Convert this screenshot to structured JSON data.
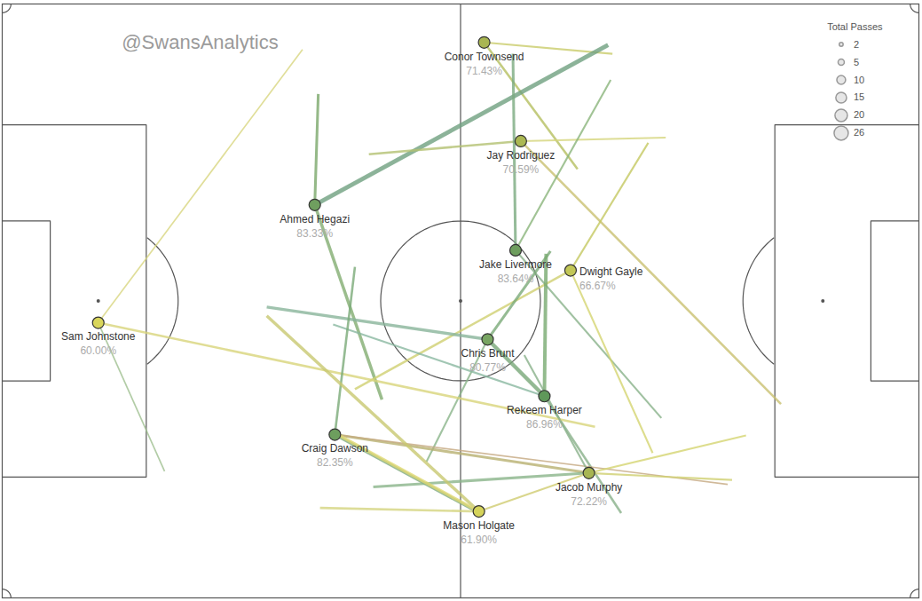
{
  "chart_data": {
    "type": "network",
    "title": "@SwansAnalytics",
    "xlim": [
      0,
      105
    ],
    "ylim": [
      0,
      68
    ],
    "tick_labels": false,
    "legend": "top-right",
    "legend_title": "Total Passes",
    "legend_sizes": [
      2,
      5,
      10,
      15,
      20,
      26
    ],
    "nodes": [
      {
        "name": "Conor Townsend",
        "x": 55.2,
        "y": 4.4,
        "completion": 71.43,
        "completion_label": "71.43%",
        "color": "#a9b651"
      },
      {
        "name": "Jay Rodriguez",
        "x": 59.4,
        "y": 15.7,
        "completion": 70.59,
        "completion_label": "70.59%",
        "color": "#abb852"
      },
      {
        "name": "Ahmed Hegazi",
        "x": 35.8,
        "y": 23.0,
        "completion": 83.33,
        "completion_label": "83.33%",
        "color": "#6f9f5f"
      },
      {
        "name": "Jake Livermore",
        "x": 58.8,
        "y": 28.2,
        "completion": 83.64,
        "completion_label": "83.64%",
        "color": "#6e9e5e"
      },
      {
        "name": "Dwight Gayle",
        "x": 65.1,
        "y": 30.5,
        "completion": 66.67,
        "completion_label": "66.67%",
        "color": "#c2c756"
      },
      {
        "name": "Chris Brunt",
        "x": 55.6,
        "y": 38.4,
        "completion": 80.77,
        "completion_label": "80.77%",
        "color": "#78a562"
      },
      {
        "name": "Rekeem Harper",
        "x": 62.1,
        "y": 44.9,
        "completion": 86.96,
        "completion_label": "86.96%",
        "color": "#5f985a"
      },
      {
        "name": "Sam Johnstone",
        "x": 11.0,
        "y": 36.5,
        "completion": 60.0,
        "completion_label": "60.00%",
        "color": "#d9d65b"
      },
      {
        "name": "Craig Dawson",
        "x": 38.1,
        "y": 49.3,
        "completion": 82.35,
        "completion_label": "82.35%",
        "color": "#6d9e5e"
      },
      {
        "name": "Jacob Murphy",
        "x": 67.2,
        "y": 53.7,
        "completion": 72.22,
        "completion_label": "72.22%",
        "color": "#a7b552"
      },
      {
        "name": "Mason Holgate",
        "x": 54.6,
        "y": 58.1,
        "completion": 61.9,
        "completion_label": "61.90%",
        "color": "#d5d35a"
      }
    ],
    "edges": [
      {
        "from": "Conor Townsend",
        "to_x": 69.9,
        "to_y": 5.7,
        "passes": 3,
        "color": "#c9cc6a"
      },
      {
        "from": "Conor Townsend",
        "to_x": 65.9,
        "to_y": 18.9,
        "passes": 4,
        "color": "#b5bf60"
      },
      {
        "from": "Ahmed Hegazi",
        "to_x": 69.4,
        "to_y": 4.7,
        "passes": 9,
        "color": "#6fa080"
      },
      {
        "from": "Ahmed Hegazi",
        "to_x": 36.2,
        "to_y": 10.3,
        "passes": 5,
        "color": "#7aa86a"
      },
      {
        "from": "Ahmed Hegazi",
        "to_x": 43.5,
        "to_y": 45.3,
        "passes": 6,
        "color": "#82ad70"
      },
      {
        "from": "Jay Rodriguez",
        "to_x": 42.0,
        "to_y": 17.2,
        "passes": 4,
        "color": "#b3c070"
      },
      {
        "from": "Jay Rodriguez",
        "to_x": 76.0,
        "to_y": 15.3,
        "passes": 3,
        "color": "#d4d47a"
      },
      {
        "from": "Jay Rodriguez",
        "to_x": 89.2,
        "to_y": 45.8,
        "passes": 4,
        "color": "#c9c070"
      },
      {
        "from": "Jake Livermore",
        "to_x": 58.5,
        "to_y": 5.7,
        "passes": 5,
        "color": "#7aaa80"
      },
      {
        "from": "Jake Livermore",
        "to_x": 69.7,
        "to_y": 8.7,
        "passes": 3,
        "color": "#8ab47a"
      },
      {
        "from": "Jake Livermore",
        "to_x": 75.5,
        "to_y": 47.4,
        "passes": 3,
        "color": "#88b28a"
      },
      {
        "from": "Dwight Gayle",
        "to_x": 74.0,
        "to_y": 15.9,
        "passes": 3,
        "color": "#c4c860"
      },
      {
        "from": "Dwight Gayle",
        "to_x": 40.4,
        "to_y": 44.1,
        "passes": 4,
        "color": "#d0d070"
      },
      {
        "from": "Dwight Gayle",
        "to_x": 74.5,
        "to_y": 51.4,
        "passes": 3,
        "color": "#d4d470"
      },
      {
        "from": "Chris Brunt",
        "to_x": 30.3,
        "to_y": 34.7,
        "passes": 6,
        "color": "#88b49a"
      },
      {
        "from": "Chris Brunt",
        "to_x": 48.6,
        "to_y": 52.4,
        "passes": 3,
        "color": "#8ab48a"
      },
      {
        "from": "Chris Brunt",
        "to_x": 62.1,
        "to_y": 44.9,
        "passes": 8,
        "color": "#78a878"
      },
      {
        "from": "Chris Brunt",
        "to_x": 62.8,
        "to_y": 28.3,
        "passes": 5,
        "color": "#7aaa78"
      },
      {
        "from": "Rekeem Harper",
        "to_x": 62.3,
        "to_y": 28.6,
        "passes": 7,
        "color": "#78aa70"
      },
      {
        "from": "Rekeem Harper",
        "to_x": 37.9,
        "to_y": 36.7,
        "passes": 3,
        "color": "#8ab8a0"
      },
      {
        "from": "Rekeem Harper",
        "to_x": 70.9,
        "to_y": 58.3,
        "passes": 4,
        "color": "#88b08a"
      },
      {
        "from": "Sam Johnstone",
        "to_x": 34.4,
        "to_y": 5.2,
        "passes": 2,
        "color": "#d8d680"
      },
      {
        "from": "Sam Johnstone",
        "to_x": 67.9,
        "to_y": 48.4,
        "passes": 4,
        "color": "#d8d47a"
      },
      {
        "from": "Sam Johnstone",
        "to_x": 18.6,
        "to_y": 53.5,
        "passes": 2,
        "color": "#9fbf90"
      },
      {
        "from": "Craig Dawson",
        "to_x": 40.4,
        "to_y": 30.1,
        "passes": 4,
        "color": "#7aaa78"
      },
      {
        "from": "Craig Dawson",
        "to_x": 67.2,
        "to_y": 53.7,
        "passes": 5,
        "color": "#b8b070"
      },
      {
        "from": "Craig Dawson",
        "to_x": 83.1,
        "to_y": 55.0,
        "passes": 2,
        "color": "#c4a880"
      },
      {
        "from": "Craig Dawson",
        "to_x": 54.7,
        "to_y": 58.3,
        "passes": 6,
        "color": "#80aa80"
      },
      {
        "from": "Jacob Murphy",
        "to_x": 85.2,
        "to_y": 49.4,
        "passes": 3,
        "color": "#d4d470"
      },
      {
        "from": "Jacob Murphy",
        "to_x": 42.5,
        "to_y": 55.3,
        "passes": 5,
        "color": "#8ab48a"
      },
      {
        "from": "Jacob Murphy",
        "to_x": 83.6,
        "to_y": 54.5,
        "passes": 3,
        "color": "#d0d070"
      },
      {
        "from": "Jacob Murphy",
        "to_x": 59.8,
        "to_y": 40.2,
        "passes": 3,
        "color": "#88b08a"
      },
      {
        "from": "Mason Holgate",
        "to_x": 36.4,
        "to_y": 57.7,
        "passes": 4,
        "color": "#d4d480"
      },
      {
        "from": "Mason Holgate",
        "to_x": 30.3,
        "to_y": 35.7,
        "passes": 6,
        "color": "#c8c870"
      },
      {
        "from": "Mason Holgate",
        "to_x": 38.6,
        "to_y": 49.4,
        "passes": 6,
        "color": "#e0d870"
      },
      {
        "from": "Mason Holgate",
        "to_x": 67.2,
        "to_y": 53.7,
        "passes": 3,
        "color": "#d0cc70"
      }
    ]
  }
}
